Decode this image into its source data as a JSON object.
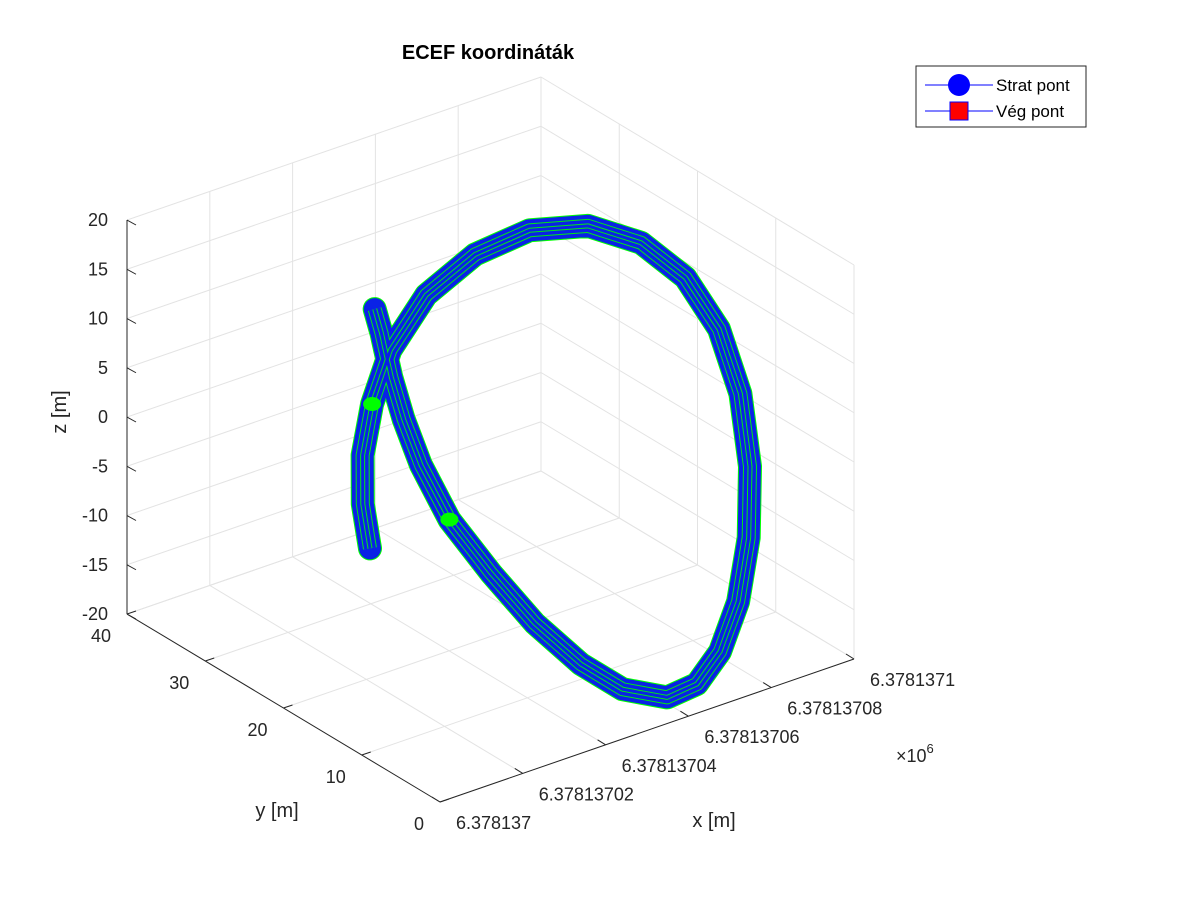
{
  "chart_data": {
    "type": "line3d",
    "title": "ECEF koordináták",
    "xlabel": "x [m]",
    "ylabel": "y [m]",
    "zlabel": "z [m]",
    "x_exponent_label": "×10",
    "x_exponent": "6",
    "xlim": [
      6.378137,
      6.3781371
    ],
    "ylim": [
      0,
      40
    ],
    "zlim": [
      -20,
      20
    ],
    "x_ticks": [
      "6.378137",
      "6.37813702",
      "6.37813704",
      "6.37813706",
      "6.37813708",
      "6.3781371"
    ],
    "y_ticks": [
      "0",
      "10",
      "20",
      "30",
      "40"
    ],
    "z_ticks": [
      "-20",
      "-15",
      "-10",
      "-5",
      "0",
      "5",
      "10",
      "15",
      "20"
    ],
    "grid": true,
    "legend_position": "top-right",
    "legend": [
      {
        "label": "Strat pont",
        "marker": "circle",
        "color": "#0000ff",
        "line_color": "#0000ff"
      },
      {
        "label": "Vég pont",
        "marker": "square",
        "color": "#ff0000",
        "line_color": "#0000ff"
      }
    ],
    "series": [
      {
        "style": "tube",
        "color": "#0a22e6",
        "stripe_color": "#00ff00",
        "points": [
          {
            "x": 6.37813705,
            "y": 35.4,
            "z": -18.4
          },
          {
            "x": 6.3781370509,
            "y": 36.8,
            "z": -14.7
          },
          {
            "x": 6.3781370535,
            "y": 38.2,
            "z": -10.8
          },
          {
            "x": 6.3781370575,
            "y": 39.1,
            "z": -6.6
          },
          {
            "x": 6.3781370625,
            "y": 39.4,
            "z": -2.0
          },
          {
            "x": 6.37813707,
            "y": 38.8,
            "z": 2.8
          },
          {
            "x": 6.378137078,
            "y": 36.8,
            "z": 6.7
          },
          {
            "x": 6.3781370855,
            "y": 33.8,
            "z": 9.5
          },
          {
            "x": 6.3781370921,
            "y": 29.8,
            "z": 10.9
          },
          {
            "x": 6.3781370964,
            "y": 25.3,
            "z": 10.7
          },
          {
            "x": 6.3781370986,
            "y": 20.8,
            "z": 9.0
          },
          {
            "x": 6.3781370984,
            "y": 16.4,
            "z": 5.9
          },
          {
            "x": 6.378137096,
            "y": 12.4,
            "z": 1.6
          },
          {
            "x": 6.3781370917,
            "y": 8.9,
            "z": -3.5
          },
          {
            "x": 6.3781370859,
            "y": 6.0,
            "z": -8.5
          },
          {
            "x": 6.378137079,
            "y": 3.7,
            "z": -12.9
          },
          {
            "x": 6.3781370718,
            "y": 2.2,
            "z": -16.2
          },
          {
            "x": 6.3781370645,
            "y": 1.3,
            "z": -18.0
          },
          {
            "x": 6.3781370575,
            "y": 1.4,
            "z": -18.4
          },
          {
            "x": 6.378137049,
            "y": 2.6,
            "z": -16.9
          },
          {
            "x": 6.378137042,
            "y": 4.2,
            "z": -14.1
          },
          {
            "x": 6.378137035,
            "y": 6.4,
            "z": -10.0
          },
          {
            "x": 6.378137029,
            "y": 8.8,
            "z": -5.2
          },
          {
            "x": 6.378137024,
            "y": 11.5,
            "z": -0.3
          },
          {
            "x": 6.3781370215,
            "y": 13.8,
            "z": 4.5
          },
          {
            "x": 6.3781370205,
            "y": 15.5,
            "z": 8.5
          },
          {
            "x": 6.37813702,
            "y": 16.8,
            "z": 12.2
          },
          {
            "x": 6.3781370195,
            "y": 17.8,
            "z": 16.3
          },
          {
            "x": 6.378137019,
            "y": 18.4,
            "z": 18.5
          }
        ]
      }
    ],
    "markers": [
      {
        "x": 6.3781370575,
        "y": 39.1,
        "z": -6.6,
        "color": "#00ff00"
      },
      {
        "x": 6.378137024,
        "y": 11.5,
        "z": -0.3,
        "color": "#00ff00"
      }
    ]
  }
}
